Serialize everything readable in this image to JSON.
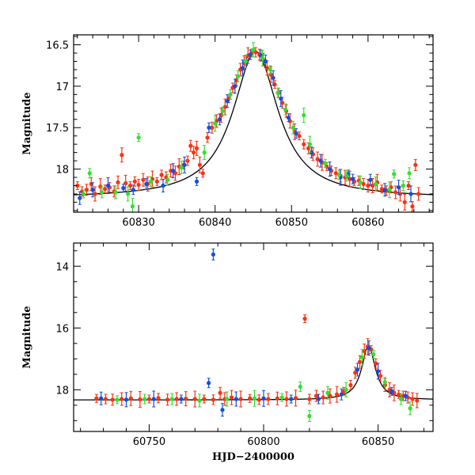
{
  "chart_data": [
    {
      "type": "scatter",
      "panel": "top",
      "title": "",
      "xlabel": "",
      "ylabel": "Magnitude",
      "xlim": [
        60821.5,
        60868.5
      ],
      "ylim": [
        18.52,
        16.38
      ],
      "y_inverted": true,
      "x_ticks": [
        60830,
        60840,
        60850,
        60860
      ],
      "x_tick_labels": [
        "60830",
        "60840",
        "60850",
        "60860"
      ],
      "y_ticks": [
        16.5,
        17,
        17.5,
        18
      ],
      "y_tick_labels": [
        "16.5",
        "17",
        "17.5",
        "18"
      ],
      "grid": false,
      "legend": "none",
      "model_curve": {
        "t0": 60845.3,
        "baseline": 18.35,
        "peak_delta": 1.77,
        "width": 3.6
      },
      "series": [
        {
          "color": "#ff3010",
          "points": [
            [
              60822,
              18.2
            ],
            [
              60822.6,
              18.27
            ],
            [
              60823.2,
              18.25
            ],
            [
              60823.8,
              18.18
            ],
            [
              60824.3,
              18.3
            ],
            [
              60825,
              18.21
            ],
            [
              60825.6,
              18.24
            ],
            [
              60826.2,
              18.22
            ],
            [
              60826.8,
              18.27
            ],
            [
              60827.3,
              18.16
            ],
            [
              60827.8,
              17.83
            ],
            [
              60828.3,
              18.17
            ],
            [
              60828.9,
              18.2
            ],
            [
              60829.5,
              18.15
            ],
            [
              60830,
              18.19
            ],
            [
              60830.6,
              18.13
            ],
            [
              60831.2,
              18.18
            ],
            [
              60831.8,
              18.12
            ],
            [
              60832.4,
              18.15
            ],
            [
              60833,
              18.07
            ],
            [
              60833.6,
              18.1
            ],
            [
              60834.2,
              18.02
            ],
            [
              60834.8,
              18.05
            ],
            [
              60835.3,
              17.97
            ],
            [
              60835.9,
              17.95
            ],
            [
              60836.4,
              17.9
            ],
            [
              60836.8,
              17.72
            ],
            [
              60837.2,
              17.8
            ],
            [
              60837.6,
              17.75
            ],
            [
              60838,
              17.95
            ],
            [
              60838.4,
              18.05
            ],
            [
              60839,
              17.62
            ],
            [
              60839.6,
              17.5
            ],
            [
              60840.2,
              17.42
            ],
            [
              60840.8,
              17.35
            ],
            [
              60841.3,
              17.25
            ],
            [
              60841.8,
              17.15
            ],
            [
              60842.3,
              17.02
            ],
            [
              60842.8,
              16.93
            ],
            [
              60843.3,
              16.8
            ],
            [
              60843.8,
              16.72
            ],
            [
              60844.3,
              16.63
            ],
            [
              60844.8,
              16.6
            ],
            [
              60845.3,
              16.59
            ],
            [
              60845.8,
              16.62
            ],
            [
              60846.3,
              16.68
            ],
            [
              60846.8,
              16.78
            ],
            [
              60847.3,
              16.86
            ],
            [
              60847.8,
              16.98
            ],
            [
              60848.3,
              17.08
            ],
            [
              60848.8,
              17.2
            ],
            [
              60849.3,
              17.3
            ],
            [
              60849.8,
              17.42
            ],
            [
              60850.4,
              17.55
            ],
            [
              60851,
              17.6
            ],
            [
              60851.6,
              17.7
            ],
            [
              60852.2,
              17.75
            ],
            [
              60852.8,
              17.82
            ],
            [
              60853.4,
              17.88
            ],
            [
              60854,
              17.92
            ],
            [
              60854.6,
              17.97
            ],
            [
              60855.2,
              18.02
            ],
            [
              60855.8,
              18.05
            ],
            [
              60856.4,
              18.08
            ],
            [
              60857,
              18.1
            ],
            [
              60857.6,
              18.12
            ],
            [
              60858.2,
              18.15
            ],
            [
              60858.8,
              18.14
            ],
            [
              60859.4,
              18.18
            ],
            [
              60860,
              18.2
            ],
            [
              60860.6,
              18.2
            ],
            [
              60861.2,
              18.16
            ],
            [
              60861.8,
              18.24
            ],
            [
              60862.4,
              18.26
            ],
            [
              60863,
              18.22
            ],
            [
              60863.6,
              18.28
            ],
            [
              60864.2,
              18.3
            ],
            [
              60864.8,
              18.4
            ],
            [
              60865.3,
              18.2
            ],
            [
              60865.8,
              18.45
            ],
            [
              60866.2,
              17.95
            ],
            [
              60866.6,
              18.3
            ]
          ]
        },
        {
          "color": "#1050e0",
          "points": [
            [
              60822.3,
              18.35
            ],
            [
              60824,
              18.25
            ],
            [
              60826,
              18.2
            ],
            [
              60828,
              18.23
            ],
            [
              60829.3,
              18.25
            ],
            [
              60831,
              18.18
            ],
            [
              60833.2,
              18.2
            ],
            [
              60834.5,
              18.02
            ],
            [
              60836,
              17.95
            ],
            [
              60837.6,
              18.15
            ],
            [
              60839.2,
              17.5
            ],
            [
              60840.6,
              17.4
            ],
            [
              60841.6,
              17.18
            ],
            [
              60842.6,
              17.0
            ],
            [
              60843.6,
              16.78
            ],
            [
              60844.1,
              16.7
            ],
            [
              60844.6,
              16.62
            ],
            [
              60846,
              16.63
            ],
            [
              60846.6,
              16.7
            ],
            [
              60847.6,
              16.9
            ],
            [
              60848.6,
              17.15
            ],
            [
              60849.6,
              17.38
            ],
            [
              60850.6,
              17.57
            ],
            [
              60852.6,
              17.8
            ],
            [
              60853.8,
              17.9
            ],
            [
              60855,
              18.0
            ],
            [
              60856.4,
              18.1
            ],
            [
              60857.4,
              18.06
            ],
            [
              60858,
              18.12
            ],
            [
              60860.3,
              18.13
            ],
            [
              60862.2,
              18.25
            ],
            [
              60864,
              18.22
            ],
            [
              60865.6,
              18.3
            ]
          ]
        },
        {
          "color": "#30e030",
          "points": [
            [
              60822.8,
              18.3
            ],
            [
              60823.6,
              18.05
            ],
            [
              60825.2,
              18.28
            ],
            [
              60827,
              18.28
            ],
            [
              60828.6,
              18.3
            ],
            [
              60829.2,
              18.45
            ],
            [
              60830,
              17.62
            ],
            [
              60831.6,
              18.15
            ],
            [
              60833.8,
              18.13
            ],
            [
              60835.6,
              17.98
            ],
            [
              60838.6,
              17.8
            ],
            [
              60840,
              17.45
            ],
            [
              60841,
              17.3
            ],
            [
              60842,
              17.1
            ],
            [
              60843,
              16.88
            ],
            [
              60844,
              16.7
            ],
            [
              60845,
              16.56
            ],
            [
              60846.2,
              16.66
            ],
            [
              60847.2,
              16.8
            ],
            [
              60848.2,
              17.08
            ],
            [
              60849.2,
              17.28
            ],
            [
              60850.2,
              17.5
            ],
            [
              60851.6,
              17.35
            ],
            [
              60852.4,
              17.7
            ],
            [
              60854.4,
              17.93
            ],
            [
              60856.2,
              18.07
            ],
            [
              60857.2,
              18.08
            ],
            [
              60859,
              18.16
            ],
            [
              60861,
              18.18
            ],
            [
              60862.8,
              18.25
            ],
            [
              60863.4,
              18.06
            ],
            [
              60864.6,
              18.2
            ],
            [
              60865.4,
              18.05
            ]
          ]
        }
      ]
    },
    {
      "type": "scatter",
      "panel": "bottom",
      "title": "",
      "xlabel": "HJD−2400000",
      "ylabel": "Magnitude",
      "xlim": [
        60717,
        60874
      ],
      "ylim": [
        19.35,
        13.25
      ],
      "y_inverted": true,
      "x_ticks": [
        60750,
        60800,
        60850
      ],
      "x_tick_labels": [
        "60750",
        "60800",
        "60850"
      ],
      "y_ticks": [
        14,
        16,
        18
      ],
      "y_tick_labels": [
        "14",
        "16",
        "18"
      ],
      "grid": false,
      "legend": "none",
      "model_curve": {
        "t0": 60845.8,
        "baseline": 18.33,
        "peak_delta": 1.75,
        "width": 3.6
      },
      "series": [
        {
          "color": "#ff3010",
          "points": [
            [
              60727,
              18.28
            ],
            [
              60731,
              18.3
            ],
            [
              60734,
              18.32
            ],
            [
              60738,
              18.3
            ],
            [
              60742,
              18.28
            ],
            [
              60746,
              18.31
            ],
            [
              60750,
              18.3
            ],
            [
              60754,
              18.27
            ],
            [
              60758,
              18.32
            ],
            [
              60762,
              18.3
            ],
            [
              60766,
              18.29
            ],
            [
              60770,
              18.3
            ],
            [
              60774,
              18.3
            ],
            [
              60778,
              18.32
            ],
            [
              60781,
              18.1
            ],
            [
              60783,
              18.3
            ],
            [
              60786,
              18.25
            ],
            [
              60790,
              18.3
            ],
            [
              60794,
              18.28
            ],
            [
              60798,
              18.32
            ],
            [
              60802,
              18.3
            ],
            [
              60806,
              18.28
            ],
            [
              60810,
              18.3
            ],
            [
              60814,
              18.27
            ],
            [
              60818,
              15.7
            ],
            [
              60820,
              18.3
            ],
            [
              60823,
              18.2
            ],
            [
              60826,
              18.25
            ],
            [
              60829,
              18.2
            ],
            [
              60832,
              18.15
            ],
            [
              60835,
              18.05
            ],
            [
              60838,
              17.85
            ],
            [
              60840,
              17.45
            ],
            [
              60842,
              17.1
            ],
            [
              60844,
              16.75
            ],
            [
              60845.5,
              16.6
            ],
            [
              60847,
              16.7
            ],
            [
              60849,
              17.15
            ],
            [
              60851,
              17.55
            ],
            [
              60853,
              17.85
            ],
            [
              60855,
              18.0
            ],
            [
              60857,
              18.1
            ],
            [
              60859,
              18.15
            ],
            [
              60861,
              18.2
            ],
            [
              60863,
              18.25
            ],
            [
              60865,
              18.3
            ],
            [
              60867,
              18.35
            ]
          ]
        },
        {
          "color": "#1050e0",
          "points": [
            [
              60729,
              18.28
            ],
            [
              60740,
              18.32
            ],
            [
              60752,
              18.3
            ],
            [
              60764,
              18.3
            ],
            [
              60776,
              17.78
            ],
            [
              60778,
              13.62
            ],
            [
              60782,
              18.65
            ],
            [
              60788,
              18.3
            ],
            [
              60800,
              18.28
            ],
            [
              60812,
              18.3
            ],
            [
              60824,
              18.3
            ],
            [
              60834,
              18.15
            ],
            [
              60841,
              17.35
            ],
            [
              60846,
              16.65
            ],
            [
              60850,
              17.4
            ],
            [
              60856,
              18.05
            ],
            [
              60862,
              18.2
            ]
          ]
        },
        {
          "color": "#30e030",
          "points": [
            [
              60736,
              18.32
            ],
            [
              60748,
              18.3
            ],
            [
              60760,
              18.3
            ],
            [
              60772,
              18.35
            ],
            [
              60784,
              18.3
            ],
            [
              60796,
              18.28
            ],
            [
              60808,
              18.25
            ],
            [
              60816,
              17.9
            ],
            [
              60820,
              18.85
            ],
            [
              60828,
              18.1
            ],
            [
              60836,
              18.0
            ],
            [
              60843,
              16.95
            ],
            [
              60848,
              16.85
            ],
            [
              60853,
              17.75
            ],
            [
              60860,
              18.3
            ],
            [
              60864,
              18.6
            ]
          ]
        }
      ]
    }
  ]
}
